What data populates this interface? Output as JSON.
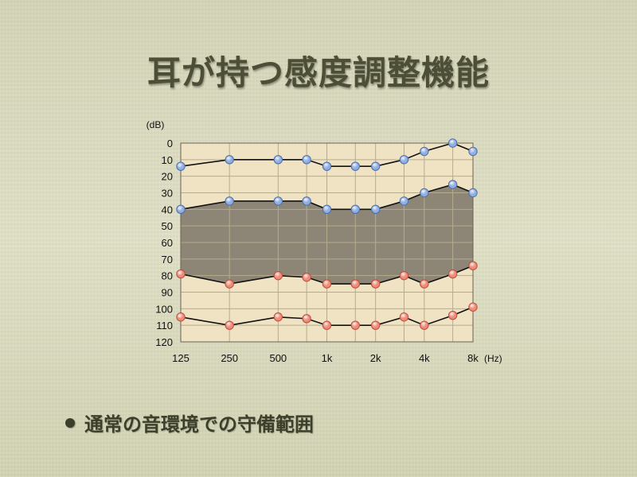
{
  "slide": {
    "title": "耳が持つ感度調整機能",
    "bullets": [
      "通常の音環境での守備範囲"
    ]
  },
  "colors": {
    "plot_bg": "#efe3c3",
    "band_fill": "#8d8676",
    "line": "#111111",
    "grid": "#b7ab8e",
    "blue_marker": "#8eaee6",
    "red_marker": "#f28a78",
    "text": "#111111",
    "title_color": "#4c4f36"
  },
  "chart_data": {
    "type": "line",
    "xscale": "log",
    "x": [
      125,
      250,
      500,
      750,
      1000,
      1500,
      2000,
      3000,
      4000,
      6000,
      8000
    ],
    "xtick_values": [
      125,
      250,
      500,
      1000,
      2000,
      4000,
      8000
    ],
    "xtick_labels": [
      "125",
      "250",
      "500",
      "1k",
      "2k",
      "4k",
      "8k"
    ],
    "xunit": "(Hz)",
    "yunit": "(dB)",
    "ylim": [
      0,
      120
    ],
    "yinverted": true,
    "yticks": [
      0,
      10,
      20,
      30,
      40,
      50,
      60,
      70,
      80,
      90,
      100,
      110,
      120
    ],
    "grid": true,
    "shaded_between": [
      1,
      2
    ],
    "series": [
      {
        "marker": "blue",
        "values": [
          14,
          10,
          10,
          10,
          14,
          14,
          14,
          10,
          5,
          0,
          5
        ]
      },
      {
        "marker": "blue",
        "values": [
          40,
          35,
          35,
          35,
          40,
          40,
          40,
          35,
          30,
          25,
          30
        ]
      },
      {
        "marker": "red",
        "values": [
          79,
          85,
          80,
          81,
          85,
          85,
          85,
          80,
          85,
          79,
          74
        ]
      },
      {
        "marker": "red",
        "values": [
          105,
          110,
          105,
          106,
          110,
          110,
          110,
          105,
          110,
          104,
          99
        ]
      }
    ]
  }
}
